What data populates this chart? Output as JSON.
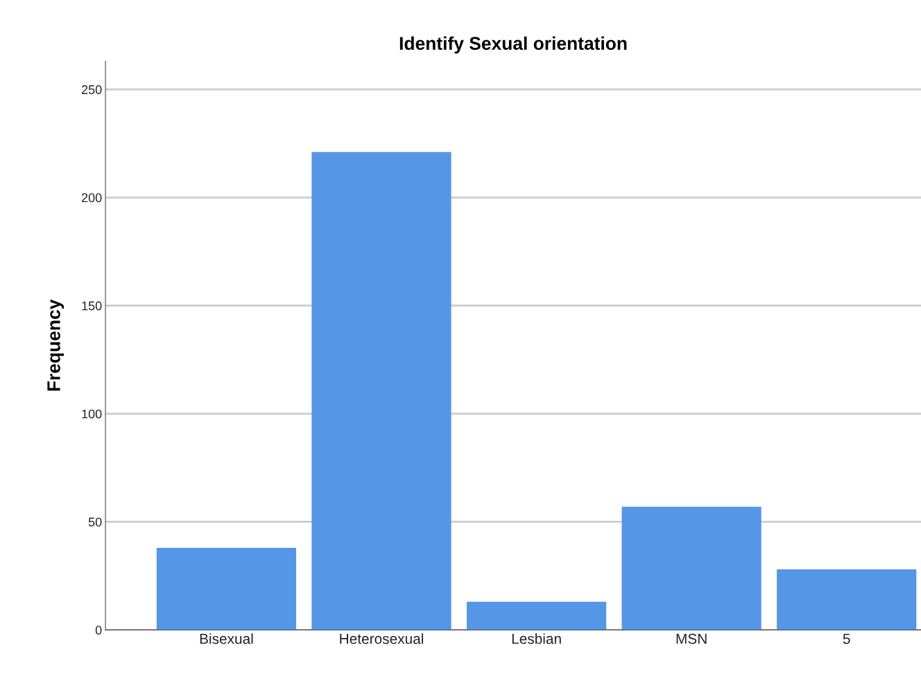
{
  "chart_data": {
    "type": "bar",
    "title": "Identify Sexual orientation",
    "ylabel": "Frequency",
    "categories": [
      "Bisexual",
      "Heterosexual",
      "Lesbian",
      "MSN",
      "5"
    ],
    "values": [
      38,
      221,
      13,
      57,
      28
    ],
    "color": "#5596e6",
    "ylim": [
      0,
      263
    ],
    "yticks": [
      0,
      50,
      100,
      150,
      200,
      250
    ],
    "grid": "y"
  }
}
